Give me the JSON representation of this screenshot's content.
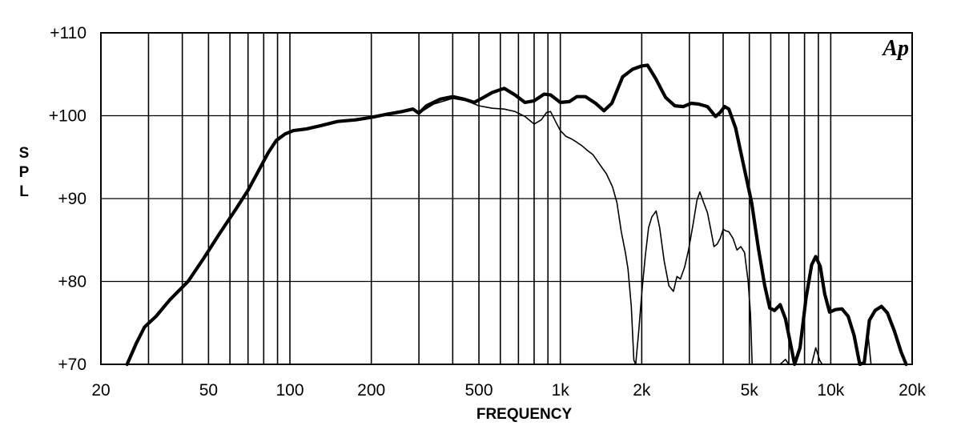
{
  "chart_data": {
    "type": "line",
    "xscale": "log",
    "xlim": [
      20,
      20000
    ],
    "ylim": [
      70,
      110
    ],
    "xlabel": "FREQUENCY",
    "ylabel": "SPL",
    "logo": "Ap",
    "grid": true,
    "xticks": [
      {
        "value": 20,
        "label": "20"
      },
      {
        "value": 50,
        "label": "50"
      },
      {
        "value": 100,
        "label": "100"
      },
      {
        "value": 200,
        "label": "200"
      },
      {
        "value": 500,
        "label": "500"
      },
      {
        "value": 1000,
        "label": "1k"
      },
      {
        "value": 2000,
        "label": "2k"
      },
      {
        "value": 5000,
        "label": "5k"
      },
      {
        "value": 10000,
        "label": "10k"
      },
      {
        "value": 20000,
        "label": "20k"
      }
    ],
    "yticks": [
      {
        "value": 70,
        "label": "+70"
      },
      {
        "value": 80,
        "label": "+80"
      },
      {
        "value": 90,
        "label": "+90"
      },
      {
        "value": 100,
        "label": "+100"
      },
      {
        "value": 110,
        "label": "+110"
      }
    ],
    "xgrid": [
      20,
      30,
      40,
      50,
      60,
      70,
      80,
      90,
      100,
      200,
      300,
      400,
      500,
      600,
      700,
      800,
      900,
      1000,
      2000,
      3000,
      4000,
      5000,
      6000,
      7000,
      8000,
      9000,
      10000,
      20000
    ],
    "series": [
      {
        "style": "thick",
        "points": [
          [
            25,
            70
          ],
          [
            27,
            72.5
          ],
          [
            29,
            74.5
          ],
          [
            32,
            75.8
          ],
          [
            36,
            77.8
          ],
          [
            42,
            80
          ],
          [
            48,
            82.8
          ],
          [
            55,
            85.8
          ],
          [
            63,
            88.7
          ],
          [
            70,
            91
          ],
          [
            77,
            93.5
          ],
          [
            83,
            95.5
          ],
          [
            89,
            97
          ],
          [
            96,
            97.8
          ],
          [
            103,
            98.2
          ],
          [
            115,
            98.4
          ],
          [
            130,
            98.8
          ],
          [
            150,
            99.3
          ],
          [
            175,
            99.5
          ],
          [
            200,
            99.8
          ],
          [
            230,
            100.2
          ],
          [
            260,
            100.5
          ],
          [
            285,
            100.8
          ],
          [
            300,
            100.3
          ],
          [
            320,
            101.2
          ],
          [
            360,
            102
          ],
          [
            400,
            102.3
          ],
          [
            440,
            102
          ],
          [
            480,
            101.6
          ],
          [
            520,
            102.2
          ],
          [
            560,
            102.8
          ],
          [
            620,
            103.3
          ],
          [
            680,
            102.5
          ],
          [
            740,
            101.6
          ],
          [
            800,
            101.8
          ],
          [
            870,
            102.6
          ],
          [
            920,
            102.5
          ],
          [
            1000,
            101.6
          ],
          [
            1080,
            101.7
          ],
          [
            1150,
            102.3
          ],
          [
            1240,
            102.3
          ],
          [
            1350,
            101.5
          ],
          [
            1450,
            100.6
          ],
          [
            1550,
            101.5
          ],
          [
            1700,
            104.7
          ],
          [
            1850,
            105.6
          ],
          [
            2000,
            106
          ],
          [
            2100,
            106.1
          ],
          [
            2250,
            104.5
          ],
          [
            2450,
            102.2
          ],
          [
            2650,
            101.2
          ],
          [
            2850,
            101.1
          ],
          [
            3050,
            101.5
          ],
          [
            3250,
            101.4
          ],
          [
            3500,
            101.1
          ],
          [
            3750,
            99.9
          ],
          [
            3900,
            100.4
          ],
          [
            4050,
            101.1
          ],
          [
            4200,
            100.8
          ],
          [
            4450,
            98.5
          ],
          [
            4800,
            93.5
          ],
          [
            5100,
            89.5
          ],
          [
            5400,
            84
          ],
          [
            5700,
            79.5
          ],
          [
            5950,
            76.8
          ],
          [
            6200,
            76.5
          ],
          [
            6500,
            77.2
          ],
          [
            6800,
            75.5
          ],
          [
            7100,
            72.5
          ],
          [
            7350,
            70
          ],
          [
            7700,
            72
          ],
          [
            8100,
            78
          ],
          [
            8500,
            82
          ],
          [
            8800,
            83
          ],
          [
            9150,
            81.8
          ],
          [
            9500,
            78.5
          ],
          [
            9900,
            76.3
          ],
          [
            10400,
            76.6
          ],
          [
            11000,
            76.7
          ],
          [
            11600,
            75.8
          ],
          [
            12200,
            73.5
          ],
          [
            12800,
            70
          ],
          [
            13300,
            70.2
          ],
          [
            13900,
            75.3
          ],
          [
            14600,
            76.5
          ],
          [
            15400,
            77
          ],
          [
            16200,
            76.2
          ],
          [
            17200,
            74
          ],
          [
            18200,
            71.5
          ],
          [
            19000,
            70
          ]
        ]
      },
      {
        "style": "thin",
        "points": [
          [
            300,
            100.3
          ],
          [
            340,
            101.4
          ],
          [
            400,
            102.1
          ],
          [
            450,
            101.8
          ],
          [
            500,
            101.2
          ],
          [
            560,
            100.9
          ],
          [
            620,
            100.8
          ],
          [
            680,
            100.5
          ],
          [
            740,
            99.9
          ],
          [
            800,
            99
          ],
          [
            850,
            99.5
          ],
          [
            890,
            100.4
          ],
          [
            920,
            100.5
          ],
          [
            960,
            99.3
          ],
          [
            1000,
            98.2
          ],
          [
            1050,
            97.5
          ],
          [
            1100,
            97.2
          ],
          [
            1150,
            96.8
          ],
          [
            1200,
            96.4
          ],
          [
            1260,
            95.8
          ],
          [
            1320,
            95.3
          ],
          [
            1400,
            94.1
          ],
          [
            1480,
            93
          ],
          [
            1560,
            91.4
          ],
          [
            1620,
            89.5
          ],
          [
            1680,
            86
          ],
          [
            1740,
            83.5
          ],
          [
            1780,
            81.5
          ],
          [
            1830,
            77
          ],
          [
            1870,
            70.5
          ],
          [
            1900,
            70
          ],
          [
            1950,
            74
          ],
          [
            2000,
            78.5
          ],
          [
            2060,
            83
          ],
          [
            2120,
            86.5
          ],
          [
            2180,
            87.8
          ],
          [
            2260,
            88.5
          ],
          [
            2330,
            86.5
          ],
          [
            2420,
            82.5
          ],
          [
            2520,
            79.5
          ],
          [
            2620,
            78.8
          ],
          [
            2700,
            80.6
          ],
          [
            2780,
            80.3
          ],
          [
            2880,
            81.7
          ],
          [
            2980,
            83.8
          ],
          [
            3100,
            87
          ],
          [
            3200,
            89.8
          ],
          [
            3280,
            90.8
          ],
          [
            3380,
            89.6
          ],
          [
            3500,
            88.3
          ],
          [
            3600,
            86.3
          ],
          [
            3700,
            84.2
          ],
          [
            3800,
            84.5
          ],
          [
            3900,
            85.2
          ],
          [
            4000,
            86.3
          ],
          [
            4100,
            86.1
          ],
          [
            4200,
            86
          ],
          [
            4350,
            85.2
          ],
          [
            4500,
            83.8
          ],
          [
            4650,
            84.2
          ],
          [
            4800,
            83.5
          ],
          [
            4950,
            80
          ],
          [
            5050,
            76
          ],
          [
            5120,
            70
          ],
          [
            5200,
            70
          ]
        ]
      },
      {
        "style": "thin",
        "points": [
          [
            6500,
            70
          ],
          [
            6800,
            70.6
          ],
          [
            7000,
            70
          ]
        ]
      },
      {
        "style": "thin",
        "points": [
          [
            8500,
            70
          ],
          [
            8800,
            72
          ],
          [
            9100,
            70.5
          ],
          [
            9300,
            70
          ]
        ]
      },
      {
        "style": "thin",
        "points": [
          [
            13300,
            70
          ],
          [
            13700,
            74
          ],
          [
            14100,
            70
          ]
        ]
      }
    ]
  }
}
